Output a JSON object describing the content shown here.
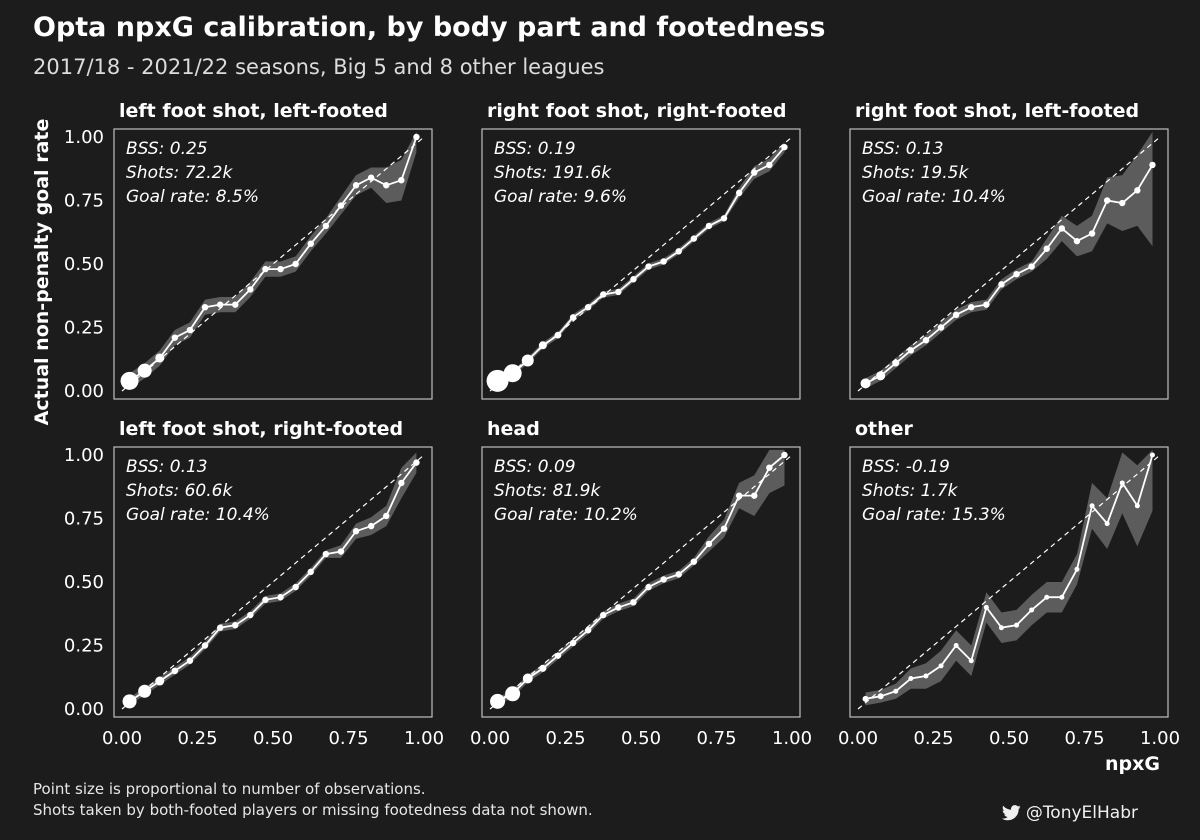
{
  "header": {
    "title": "Opta npxG calibration, by body part and footedness",
    "subtitle": "2017/18 - 2021/22 seasons, Big 5 and 8 other leagues"
  },
  "footer": {
    "caption_line1": "Point size is proportional to number of observations.",
    "caption_line2": "Shots taken by both-footed players or missing footedness data not shown.",
    "handle": "@TonyElHabr",
    "handle_icon": "twitter-bird-icon"
  },
  "colors": {
    "background": "#1c1c1c",
    "line": "#ffffff",
    "ribbon": "#5c5c5c",
    "panel_border": "#bfbfbf"
  },
  "chart_data": {
    "type": "line",
    "xlabel": "npxG",
    "ylabel": "Actual non-penalty goal rate",
    "xlim": [
      0,
      1
    ],
    "ylim": [
      0,
      1
    ],
    "ticks": [
      "0.00",
      "0.25",
      "0.50",
      "0.75",
      "1.00"
    ],
    "reference_line": "y = x (dashed)",
    "x": [
      0.025,
      0.075,
      0.125,
      0.175,
      0.225,
      0.275,
      0.325,
      0.375,
      0.425,
      0.475,
      0.525,
      0.575,
      0.625,
      0.675,
      0.725,
      0.775,
      0.825,
      0.875,
      0.925,
      0.975
    ],
    "panels": [
      {
        "title": "left foot shot, left-footed",
        "stats": [
          "BSS: 0.25",
          "Shots: 72.2k",
          "Goal rate: 8.5%"
        ],
        "y": [
          0.04,
          0.08,
          0.13,
          0.21,
          0.24,
          0.33,
          0.34,
          0.34,
          0.4,
          0.48,
          0.48,
          0.5,
          0.58,
          0.65,
          0.73,
          0.81,
          0.84,
          0.81,
          0.83,
          1.0
        ],
        "ribbon": 0.03,
        "ribbon_override": {
          "14": 0.035,
          "15": 0.04,
          "16": 0.04,
          "17": 0.07,
          "18": 0.08,
          "19": 0.06
        }
      },
      {
        "title": "right foot shot, right-footed",
        "stats": [
          "BSS: 0.19",
          "Shots: 191.6k",
          "Goal rate: 9.6%"
        ],
        "y": [
          0.04,
          0.07,
          0.12,
          0.18,
          0.22,
          0.29,
          0.33,
          0.38,
          0.39,
          0.44,
          0.49,
          0.51,
          0.55,
          0.6,
          0.65,
          0.68,
          0.78,
          0.86,
          0.89,
          0.96
        ],
        "ribbon": 0.012,
        "ribbon_override": {
          "16": 0.02,
          "17": 0.025,
          "18": 0.025,
          "19": 0.02
        }
      },
      {
        "title": "right foot shot, left-footed",
        "stats": [
          "BSS: 0.13",
          "Shots: 19.5k",
          "Goal rate: 10.4%"
        ],
        "y": [
          0.03,
          0.06,
          0.11,
          0.16,
          0.2,
          0.25,
          0.3,
          0.33,
          0.34,
          0.42,
          0.46,
          0.49,
          0.56,
          0.64,
          0.59,
          0.62,
          0.75,
          0.74,
          0.79,
          0.89
        ],
        "ribbon": 0.02,
        "ribbon_override": {
          "12": 0.04,
          "13": 0.05,
          "14": 0.06,
          "15": 0.07,
          "16": 0.09,
          "17": 0.11,
          "18": 0.14,
          "19": 0.32
        }
      },
      {
        "title": "left foot shot, right-footed",
        "stats": [
          "BSS: 0.13",
          "Shots: 60.6k",
          "Goal rate: 10.4%"
        ],
        "y": [
          0.03,
          0.07,
          0.11,
          0.15,
          0.19,
          0.25,
          0.32,
          0.33,
          0.37,
          0.43,
          0.44,
          0.48,
          0.54,
          0.61,
          0.62,
          0.7,
          0.72,
          0.76,
          0.89,
          0.97
        ],
        "ribbon": 0.015,
        "ribbon_override": {
          "14": 0.025,
          "15": 0.03,
          "16": 0.035,
          "17": 0.04,
          "18": 0.06,
          "19": 0.04
        }
      },
      {
        "title": "head",
        "stats": [
          "BSS: 0.09",
          "Shots: 81.9k",
          "Goal rate: 10.2%"
        ],
        "y": [
          0.03,
          0.06,
          0.12,
          0.16,
          0.21,
          0.26,
          0.31,
          0.37,
          0.4,
          0.42,
          0.48,
          0.51,
          0.53,
          0.58,
          0.65,
          0.71,
          0.84,
          0.84,
          0.95,
          1.0
        ],
        "ribbon": 0.015,
        "ribbon_override": {
          "14": 0.03,
          "15": 0.035,
          "16": 0.05,
          "17": 0.08,
          "18": 0.1,
          "19": 0.12
        }
      },
      {
        "title": "other",
        "stats": [
          "BSS: -0.19",
          "Shots: 1.7k",
          "Goal rate: 15.3%"
        ],
        "y": [
          0.04,
          0.05,
          0.07,
          0.12,
          0.13,
          0.17,
          0.25,
          0.19,
          0.4,
          0.32,
          0.33,
          0.39,
          0.44,
          0.44,
          0.55,
          0.8,
          0.73,
          0.89,
          0.8,
          1.0
        ],
        "ribbon": 0.06,
        "ribbon_override": {
          "0": 0.025,
          "1": 0.025,
          "2": 0.03,
          "3": 0.04,
          "4": 0.05,
          "15": 0.09,
          "16": 0.1,
          "17": 0.12,
          "18": 0.16,
          "19": 0.22
        }
      }
    ],
    "point_sizes": [
      [
        9,
        7,
        4.5,
        3.2,
        3.2,
        3.2,
        3.2,
        3.2,
        3.2,
        3.2,
        3.2,
        3.2,
        3.2,
        3.2,
        3.2,
        3.2,
        3.2,
        3.2,
        3.2,
        3.2
      ],
      [
        11,
        9,
        6,
        4,
        3.4,
        3.2,
        3.2,
        3.2,
        3.2,
        3.2,
        3.2,
        3.2,
        3.2,
        3.2,
        3.2,
        3.2,
        3.2,
        3.2,
        3.2,
        3.2
      ],
      [
        5,
        4.5,
        3.5,
        3.2,
        3.2,
        3.2,
        3.2,
        3.2,
        3.2,
        3.2,
        3.2,
        3.2,
        3.2,
        3.2,
        3.2,
        3.2,
        3.2,
        3.2,
        3.2,
        3.2
      ],
      [
        7,
        6.5,
        4.5,
        3.3,
        3.2,
        3.2,
        3.2,
        3.2,
        3.2,
        3.2,
        3.2,
        3.2,
        3.2,
        3.2,
        3.2,
        3.2,
        3.2,
        3.2,
        3.2,
        3.2
      ],
      [
        7.5,
        7.5,
        5,
        3.5,
        3.2,
        3.2,
        3.2,
        3.2,
        3.2,
        3.2,
        3.2,
        3.2,
        3.2,
        3.2,
        3.2,
        3.2,
        3.2,
        3.2,
        3.2,
        3.2
      ],
      [
        3,
        3,
        2.5,
        2.5,
        2.5,
        2.5,
        2.5,
        2.5,
        2.5,
        2.5,
        2.5,
        2.5,
        2.5,
        2.5,
        2.5,
        2.5,
        2.5,
        2.5,
        2.5,
        2.5
      ]
    ]
  }
}
